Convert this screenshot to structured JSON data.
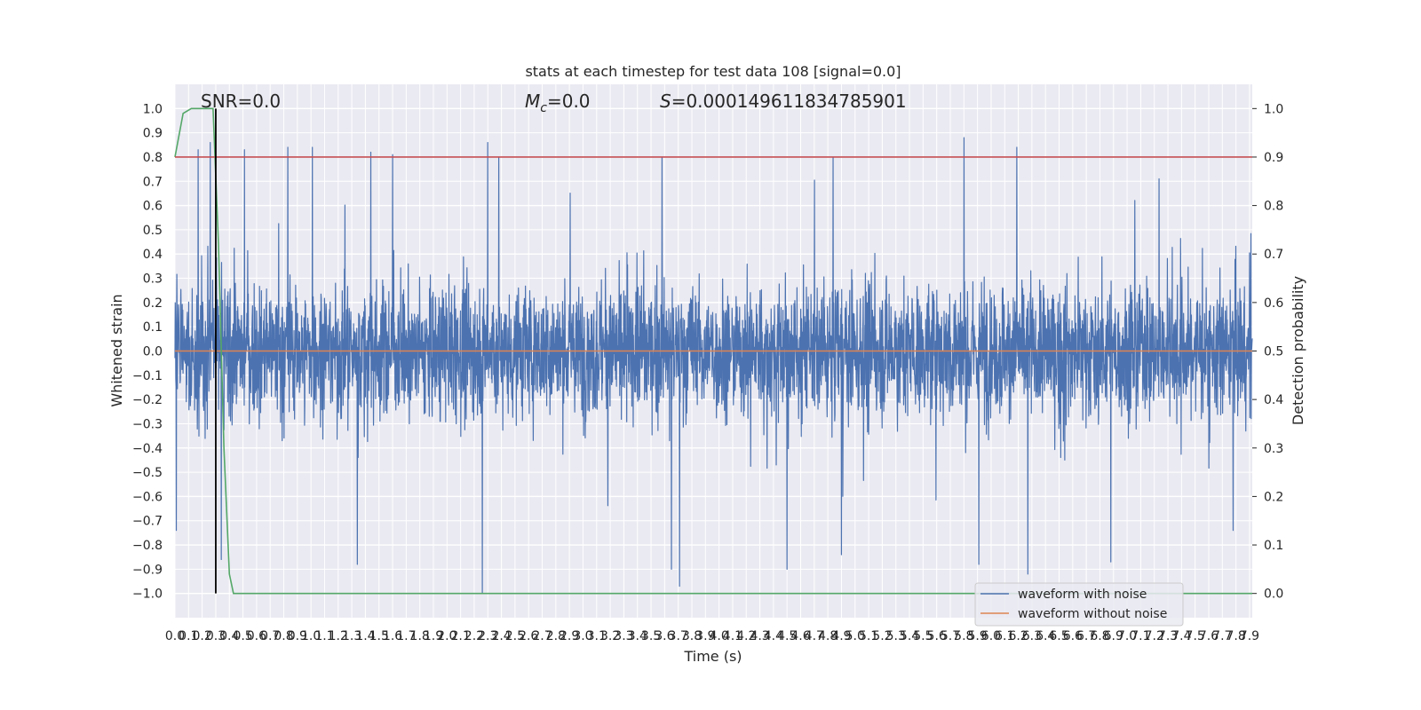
{
  "chart_data": {
    "type": "line",
    "title": "stats at each timestep for test data 108 [signal=0.0]",
    "xlabel": "Time (s)",
    "ylabel_left": "Whitened strain",
    "ylabel_right": "Detection probability",
    "xlim": [
      0.0,
      7.92
    ],
    "ylim_left": [
      -1.1,
      1.1
    ],
    "ylim_right": [
      -0.05,
      1.05
    ],
    "x_ticks": [
      0.0,
      0.1,
      0.2,
      0.3,
      0.4,
      0.5,
      0.6,
      0.7,
      0.8,
      0.9,
      1.0,
      1.1,
      1.2,
      1.3,
      1.4,
      1.5,
      1.6,
      1.7,
      1.8,
      1.9,
      2.0,
      2.1,
      2.2,
      2.3,
      2.4,
      2.5,
      2.6,
      2.7,
      2.8,
      2.9,
      3.0,
      3.1,
      3.2,
      3.3,
      3.4,
      3.5,
      3.6,
      3.7,
      3.8,
      3.9,
      4.0,
      4.1,
      4.2,
      4.3,
      4.4,
      4.5,
      4.6,
      4.7,
      4.8,
      4.9,
      5.0,
      5.1,
      5.2,
      5.3,
      5.4,
      5.5,
      5.6,
      5.7,
      5.8,
      5.9,
      6.0,
      6.1,
      6.2,
      6.3,
      6.4,
      6.5,
      6.6,
      6.7,
      6.8,
      6.9,
      7.0,
      7.1,
      7.2,
      7.3,
      7.4,
      7.5,
      7.6,
      7.7,
      7.8,
      7.9
    ],
    "x_tick_labels": [
      "0.0",
      "0.1",
      "0.2",
      "0.3",
      "0.4",
      "0.5",
      "0.6",
      "0.7",
      "0.8",
      "0.9",
      "1.0",
      "1.1",
      "1.2",
      "1.3",
      "1.4",
      "1.5",
      "1.6",
      "1.7",
      "1.8",
      "1.9",
      "2.0",
      "2.1",
      "2.2",
      "2.3",
      "2.4",
      "2.5",
      "2.6",
      "2.7",
      "2.8",
      "2.9",
      "3.0",
      "3.1",
      "3.2",
      "3.3",
      "3.4",
      "3.5",
      "3.6",
      "3.7",
      "3.8",
      "3.9",
      "4.0",
      "4.1",
      "4.2",
      "4.3",
      "4.4",
      "4.5",
      "4.6",
      "4.7",
      "4.8",
      "4.9",
      "5.0",
      "5.1",
      "5.2",
      "5.3",
      "5.4",
      "5.5",
      "5.6",
      "5.7",
      "5.8",
      "5.9",
      "6.0",
      "6.1",
      "6.2",
      "6.3",
      "6.4",
      "6.5",
      "6.6",
      "6.7",
      "6.8",
      "6.9",
      "7.0",
      "7.1",
      "7.2",
      "7.3",
      "7.4",
      "7.5",
      "7.6",
      "7.7",
      "7.8",
      "7.9"
    ],
    "y_ticks_left": [
      1.0,
      0.9,
      0.8,
      0.7,
      0.6,
      0.5,
      0.4,
      0.3,
      0.2,
      0.1,
      0.0,
      -0.1,
      -0.2,
      -0.3,
      -0.4,
      -0.5,
      -0.6,
      -0.7,
      -0.8,
      -0.9,
      -1.0
    ],
    "y_tick_labels_left": [
      "1.0",
      "0.9",
      "0.8",
      "0.7",
      "0.6",
      "0.5",
      "0.4",
      "0.3",
      "0.2",
      "0.1",
      "0.0",
      "−0.1",
      "−0.2",
      "−0.3",
      "−0.4",
      "−0.5",
      "−0.6",
      "−0.7",
      "−0.8",
      "−0.9",
      "−1.0"
    ],
    "y_ticks_right": [
      1.0,
      0.9,
      0.8,
      0.7,
      0.6,
      0.5,
      0.4,
      0.3,
      0.2,
      0.1,
      0.0
    ],
    "y_tick_labels_right": [
      "1.0",
      "0.9",
      "0.8",
      "0.7",
      "0.6",
      "0.5",
      "0.4",
      "0.3",
      "0.2",
      "0.1",
      "0.0"
    ],
    "grid": true,
    "legend_position": "lower-right",
    "legend": [
      {
        "label": "waveform with noise",
        "color": "#4c72b0"
      },
      {
        "label": "waveform without noise",
        "color": "#dd8452"
      }
    ],
    "annotations": {
      "snr": "SNR=0.0",
      "mc_symbol": "M",
      "mc_sub": "c",
      "mc_value": "=0.0",
      "s_symbol": "S",
      "s_value": "=0.000149611834785901"
    },
    "series": [
      {
        "name": "waveform with noise",
        "axis": "left",
        "color": "#4c72b0",
        "style": "dense noise, typical envelope ±0.4, peaks to ±0.9, min −1.0 near t=2.26"
      },
      {
        "name": "waveform without noise",
        "axis": "left",
        "color": "#dd8452",
        "x": [
          0.0,
          7.92
        ],
        "y": [
          0.0,
          0.0
        ]
      },
      {
        "axis": "right",
        "color": "#55a868",
        "x": [
          0.0,
          0.06,
          0.12,
          0.2,
          0.28,
          0.32,
          0.36,
          0.4,
          0.43,
          7.92
        ],
        "y": [
          0.9,
          0.99,
          1.0,
          1.0,
          1.0,
          0.72,
          0.3,
          0.04,
          0.0,
          0.0
        ]
      },
      {
        "axis": "right",
        "color": "#c44e52",
        "x": [
          0.0,
          7.92
        ],
        "y": [
          0.9,
          0.9
        ]
      },
      {
        "axis": "right",
        "color": "#000000",
        "x": [
          0.3,
          0.3
        ],
        "y": [
          0.0,
          1.0
        ]
      }
    ],
    "noise_peaks": [
      {
        "x": 0.17,
        "y": 0.83
      },
      {
        "x": 0.26,
        "y": 0.86
      },
      {
        "x": 0.51,
        "y": 0.83
      },
      {
        "x": 0.83,
        "y": 0.84
      },
      {
        "x": 1.01,
        "y": 0.84
      },
      {
        "x": 1.44,
        "y": 0.82
      },
      {
        "x": 1.6,
        "y": 0.81
      },
      {
        "x": 2.3,
        "y": 0.86
      },
      {
        "x": 2.38,
        "y": 0.8
      },
      {
        "x": 3.58,
        "y": 0.8
      },
      {
        "x": 5.8,
        "y": 0.88
      },
      {
        "x": 6.19,
        "y": 0.84
      },
      {
        "x": 0.01,
        "y": -0.74
      },
      {
        "x": 0.34,
        "y": -0.86
      },
      {
        "x": 1.34,
        "y": -0.88
      },
      {
        "x": 2.26,
        "y": -1.0
      },
      {
        "x": 3.65,
        "y": -0.9
      },
      {
        "x": 3.71,
        "y": -0.97
      },
      {
        "x": 4.5,
        "y": -0.9
      },
      {
        "x": 4.9,
        "y": -0.84
      },
      {
        "x": 5.91,
        "y": -0.88
      },
      {
        "x": 6.27,
        "y": -0.92
      },
      {
        "x": 6.88,
        "y": -0.87
      },
      {
        "x": 7.78,
        "y": -0.74
      }
    ]
  }
}
